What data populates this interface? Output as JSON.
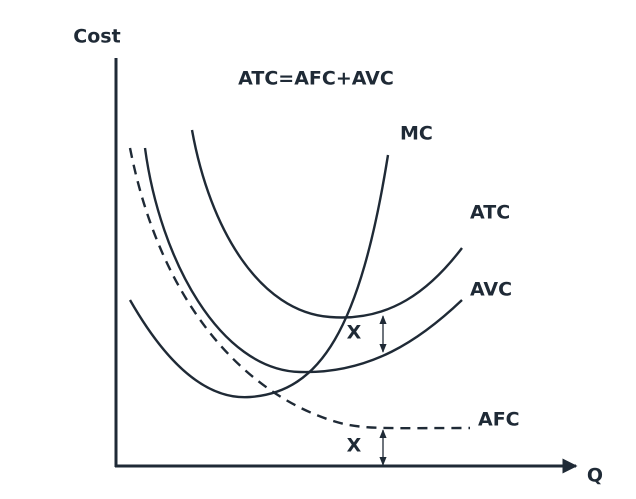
{
  "axes": {
    "y_label": "Cost",
    "x_label": "Q"
  },
  "formula": "ATC=AFC+AVC",
  "curves": [
    {
      "label": "MC"
    },
    {
      "label": "ATC"
    },
    {
      "label": "AVC"
    },
    {
      "label": "AFC"
    }
  ],
  "gaps": [
    {
      "label": "X"
    },
    {
      "label": "X"
    }
  ]
}
